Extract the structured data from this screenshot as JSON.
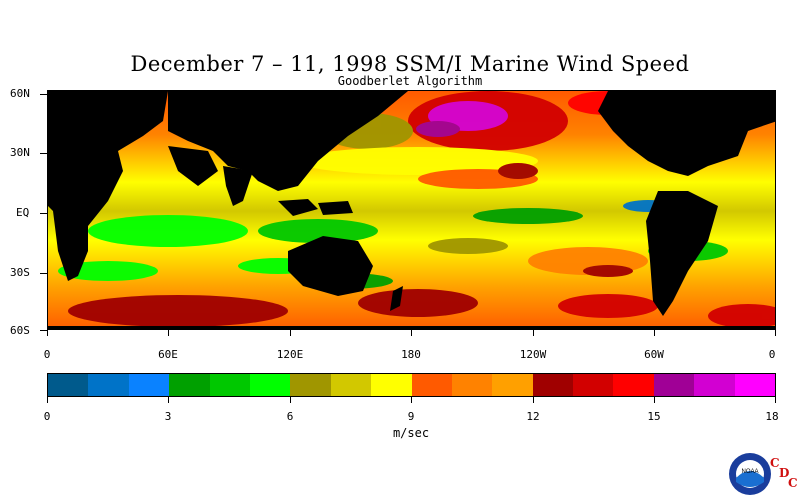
{
  "title": "December 7 – 11, 1998 SSM/I Marine Wind Speed",
  "subtitle": "Goodberlet Algorithm",
  "lat_labels": [
    "60N",
    "30N",
    "EQ",
    "30S",
    "60S"
  ],
  "lon_labels": [
    "0",
    "60E",
    "120E",
    "180",
    "120W",
    "60W",
    "0"
  ],
  "colorbar": {
    "colors": [
      "#005a8c",
      "#0073c8",
      "#0a82ff",
      "#00a000",
      "#00c800",
      "#00ff00",
      "#a09600",
      "#d2c800",
      "#ffff00",
      "#ff5a00",
      "#ff8200",
      "#ffa000",
      "#a00000",
      "#d20000",
      "#ff0000",
      "#a00096",
      "#d200d2",
      "#ff00ff"
    ],
    "tick_labels": [
      "0",
      "3",
      "6",
      "9",
      "12",
      "15",
      "18"
    ],
    "units": "m/sec"
  },
  "logo": {
    "text": "NOAA",
    "letters": [
      "C",
      "D",
      "C"
    ]
  }
}
